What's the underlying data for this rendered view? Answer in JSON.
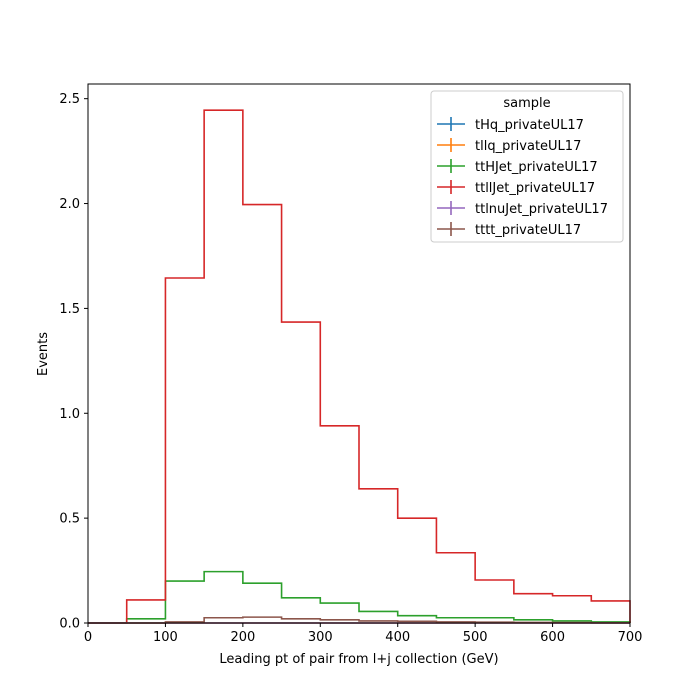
{
  "chart_data": {
    "type": "step",
    "xlabel": "Leading pt of pair from l+j collection (GeV)",
    "ylabel": "Events",
    "xlim": [
      0,
      700
    ],
    "ylim": [
      0,
      2.57
    ],
    "xticks": [
      0,
      100,
      200,
      300,
      400,
      500,
      600,
      700
    ],
    "yticks": [
      0.0,
      0.5,
      1.0,
      1.5,
      2.0,
      2.5
    ],
    "ytick_labels": [
      "0.0",
      "0.5",
      "1.0",
      "1.5",
      "2.0",
      "2.5"
    ],
    "grid": false,
    "legend": {
      "title": "sample",
      "placement": "top-right"
    },
    "bin_edges": [
      0,
      50,
      100,
      150,
      200,
      250,
      300,
      350,
      400,
      450,
      500,
      550,
      600,
      650,
      700
    ],
    "series": [
      {
        "name": "tHq_privateUL17",
        "color": "#1f77b4",
        "values": [
          0,
          0,
          0,
          0,
          0,
          0,
          0,
          0,
          0,
          0,
          0,
          0,
          0,
          0
        ]
      },
      {
        "name": "tllq_privateUL17",
        "color": "#ff7f0e",
        "values": [
          0,
          0,
          0,
          0,
          0,
          0,
          0,
          0,
          0,
          0,
          0,
          0,
          0,
          0
        ]
      },
      {
        "name": "ttHJet_privateUL17",
        "color": "#2ca02c",
        "values": [
          0,
          0.02,
          0.2,
          0.245,
          0.19,
          0.12,
          0.095,
          0.055,
          0.035,
          0.025,
          0.025,
          0.015,
          0.01,
          0.005
        ]
      },
      {
        "name": "ttllJet_privateUL17",
        "color": "#d62728",
        "values": [
          0,
          0.11,
          1.645,
          2.445,
          1.995,
          1.435,
          0.94,
          0.64,
          0.5,
          0.335,
          0.205,
          0.14,
          0.13,
          0.105
        ]
      },
      {
        "name": "ttlnuJet_privateUL17",
        "color": "#9467bd",
        "values": [
          0,
          0,
          0,
          0,
          0,
          0,
          0,
          0,
          0,
          0,
          0,
          0,
          0,
          0
        ]
      },
      {
        "name": "tttt_privateUL17",
        "color": "#8c564b",
        "values": [
          0,
          0,
          0.005,
          0.025,
          0.028,
          0.02,
          0.015,
          0.01,
          0.008,
          0.005,
          0.004,
          0.003,
          0.002,
          0.001
        ]
      }
    ]
  }
}
